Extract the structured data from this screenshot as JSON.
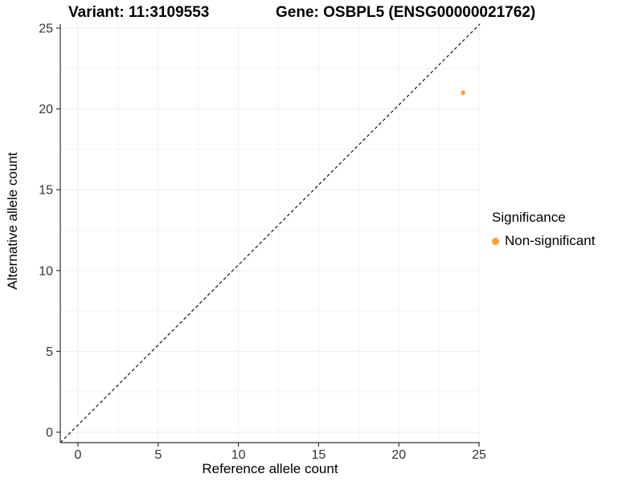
{
  "chart_data": {
    "type": "scatter",
    "title_left": "Variant: 11:3109553",
    "title_right": "Gene: OSBPL5 (ENSG00000021762)",
    "xlabel": "Reference allele count",
    "ylabel": "Alternative allele count",
    "xlim": [
      0,
      25
    ],
    "ylim": [
      0,
      25
    ],
    "x_ticks": [
      0,
      5,
      10,
      15,
      20,
      25
    ],
    "y_ticks": [
      0,
      5,
      10,
      15,
      20,
      25
    ],
    "minor_ticks": [
      2.5,
      7.5,
      12.5,
      17.5,
      22.5
    ],
    "grid": true,
    "identity_line": {
      "style": "dashed",
      "color": "#000000",
      "from": [
        0,
        0
      ],
      "to": [
        25,
        25
      ]
    },
    "series": [
      {
        "name": "Non-significant",
        "color": "#F9A030",
        "points": [
          {
            "x": 24,
            "y": 21
          }
        ]
      }
    ],
    "legend": {
      "title": "Significance",
      "position": "right",
      "entries": [
        {
          "label": "Non-significant",
          "color": "#F9A030"
        }
      ]
    },
    "panel": {
      "background": "#FFFFFF",
      "grid_major_color": "#EDEDED",
      "grid_minor_color": "#F4F4F4",
      "axis_color": "#333333",
      "tick_label_color": "#333333"
    }
  }
}
